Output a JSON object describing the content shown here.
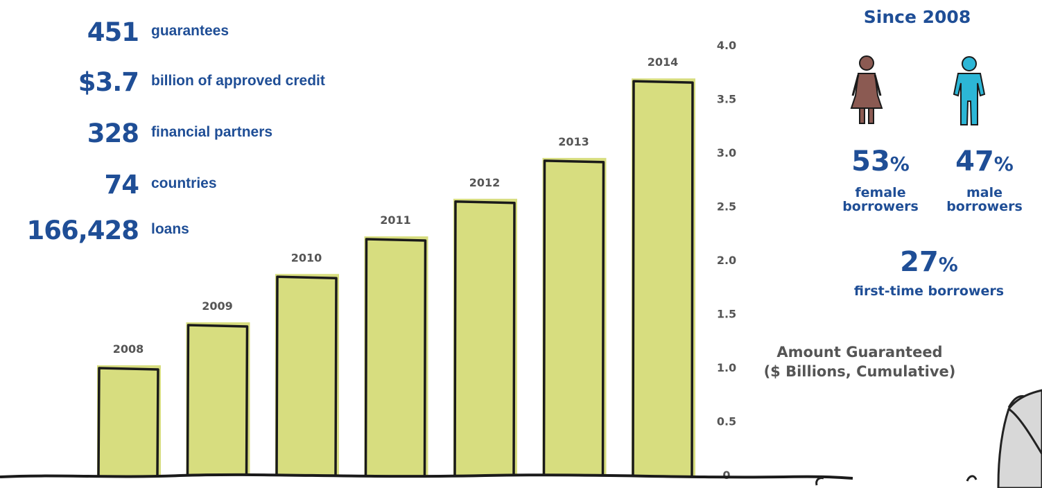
{
  "stats": [
    {
      "value": "451",
      "label": "guarantees"
    },
    {
      "value": "$3.7",
      "label": "billion of approved credit"
    },
    {
      "value": "328",
      "label": "financial partners"
    },
    {
      "value": "74",
      "label": "countries"
    },
    {
      "value": "166,428",
      "label": "loans"
    }
  ],
  "since": "Since 2008",
  "female": {
    "value": "53",
    "unit": "%",
    "label_line1": "female",
    "label_line2": "borrowers",
    "icon": "female-person-icon",
    "color": "#8b5a52"
  },
  "male": {
    "value": "47",
    "unit": "%",
    "label_line1": "male",
    "label_line2": "borrowers",
    "icon": "male-person-icon",
    "color": "#2cb6d6"
  },
  "first_time": {
    "value": "27",
    "unit": "%",
    "label": "first-time borrowers"
  },
  "colors": {
    "accent": "#1f4e96",
    "bar_fill": "#d7dd7f",
    "bar_stroke": "#1a1a1a",
    "label_gray": "#555555"
  },
  "chart_data": {
    "type": "bar",
    "categories": [
      "2008",
      "2009",
      "2010",
      "2011",
      "2012",
      "2013",
      "2014"
    ],
    "values": [
      1.0,
      1.4,
      1.85,
      2.2,
      2.55,
      2.93,
      3.67
    ],
    "ylabel_line1": "Amount Guaranteed",
    "ylabel_line2": "($ Billions, Cumulative)",
    "yticks": [
      "0",
      "0.5",
      "1.0",
      "1.5",
      "2.0",
      "2.5",
      "3.0",
      "3.5",
      "4.0"
    ],
    "ylim": [
      0,
      4.0
    ],
    "grid": false
  }
}
